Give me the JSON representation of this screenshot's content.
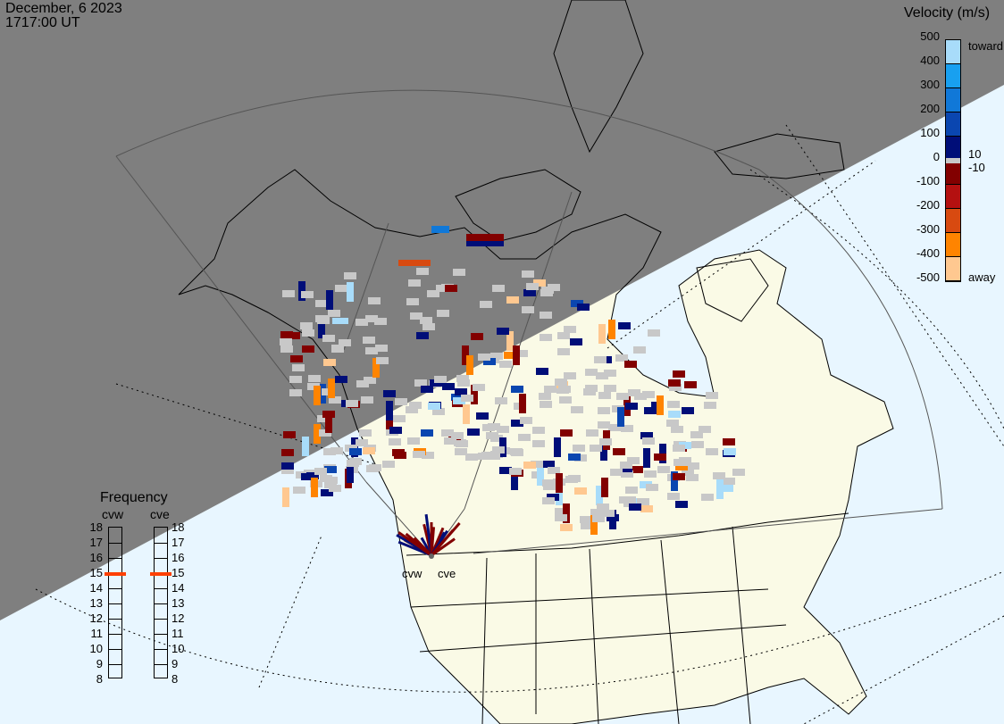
{
  "header": {
    "date": "December, 6 2023",
    "time": "1717:00 UT"
  },
  "velocity_scale": {
    "title": "Velocity (m/s)",
    "ticks": [
      "500",
      "400",
      "300",
      "200",
      "100",
      "0",
      "-100",
      "-200",
      "-300",
      "-400",
      "-500"
    ],
    "toward_label": "toward",
    "away_label": "away",
    "near_zero_upper": "10",
    "near_zero_lower": "-10",
    "colors": [
      "#a8dcfa",
      "#18a0f0",
      "#1078d8",
      "#0a46b0",
      "#000e78",
      "#c8c8c8",
      "#820000",
      "#b41010",
      "#d84a10",
      "#ff8400",
      "#ffc890"
    ]
  },
  "frequency": {
    "title": "Frequency",
    "ticks": [
      "18",
      "17",
      "16",
      "15",
      "14",
      "13",
      "12",
      "11",
      "10",
      "9",
      "8"
    ],
    "radars": [
      {
        "name": "cvw",
        "value_mhz": 14.9
      },
      {
        "name": "cve",
        "value_mhz": 14.9
      }
    ],
    "marker_color": "#ff4000"
  },
  "map": {
    "radar_labels": [
      "cvw",
      "cve"
    ],
    "night_color": "#7f7f7f",
    "land_color": "#fafae6",
    "ocean_color": "#e8f6ff",
    "ground_scatter_color": "#c8c8c8"
  }
}
